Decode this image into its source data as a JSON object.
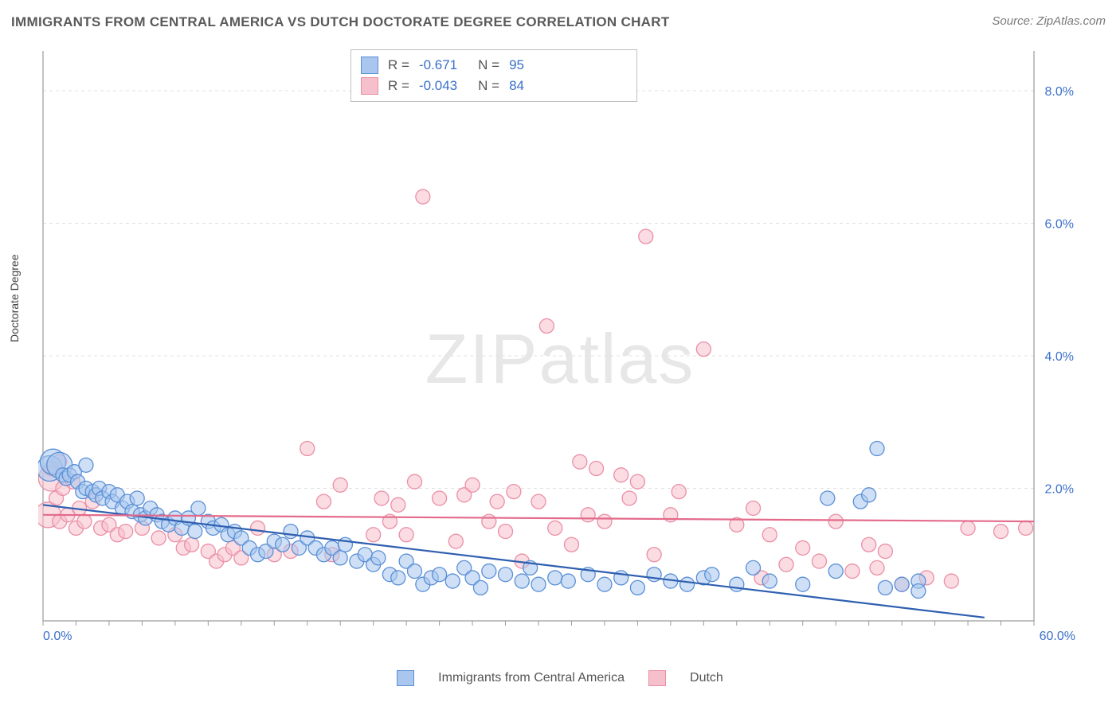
{
  "title": "IMMIGRANTS FROM CENTRAL AMERICA VS DUTCH DOCTORATE DEGREE CORRELATION CHART",
  "source_label": "Source: ",
  "source_value": "ZipAtlas.com",
  "watermark": "ZIPatlas",
  "ylabel": "Doctorate Degree",
  "chart": {
    "type": "scatter",
    "xlim": [
      0,
      60
    ],
    "ylim": [
      0,
      8.6
    ],
    "xtick_labels": [
      "0.0%",
      "60.0%"
    ],
    "ytick_values": [
      2,
      4,
      6,
      8
    ],
    "ytick_labels": [
      "2.0%",
      "4.0%",
      "6.0%",
      "8.0%"
    ],
    "grid_color": "#e0e0e0",
    "axis_color": "#9a9a9a",
    "background": "#ffffff",
    "marker_radius": 9,
    "marker_radius_large": 16,
    "series": [
      {
        "name": "Immigrants from Central America",
        "fill": "#a8c6ee",
        "stroke": "#5a8fd6",
        "fill_opacity": 0.55,
        "line_color": "#2f5fb0",
        "line_width": 2.2,
        "R": "-0.671",
        "N": "95",
        "trend": {
          "x1": 0,
          "y1": 1.75,
          "x2": 57,
          "y2": 0.05
        },
        "points": [
          [
            0.4,
            2.3
          ],
          [
            0.6,
            2.4
          ],
          [
            1.0,
            2.35
          ],
          [
            1.2,
            2.2
          ],
          [
            1.4,
            2.15
          ],
          [
            1.6,
            2.2
          ],
          [
            1.9,
            2.25
          ],
          [
            2.1,
            2.1
          ],
          [
            2.4,
            1.95
          ],
          [
            2.6,
            2.0
          ],
          [
            2.6,
            2.35
          ],
          [
            3.0,
            1.95
          ],
          [
            3.2,
            1.9
          ],
          [
            3.4,
            2.0
          ],
          [
            3.6,
            1.85
          ],
          [
            4.0,
            1.95
          ],
          [
            4.2,
            1.8
          ],
          [
            4.5,
            1.9
          ],
          [
            4.8,
            1.7
          ],
          [
            5.1,
            1.8
          ],
          [
            5.4,
            1.65
          ],
          [
            5.7,
            1.85
          ],
          [
            5.9,
            1.6
          ],
          [
            6.2,
            1.55
          ],
          [
            6.5,
            1.7
          ],
          [
            6.9,
            1.6
          ],
          [
            7.2,
            1.5
          ],
          [
            7.6,
            1.45
          ],
          [
            8.0,
            1.55
          ],
          [
            8.4,
            1.4
          ],
          [
            8.8,
            1.55
          ],
          [
            9.2,
            1.35
          ],
          [
            9.4,
            1.7
          ],
          [
            10.0,
            1.5
          ],
          [
            10.3,
            1.4
          ],
          [
            10.8,
            1.45
          ],
          [
            11.2,
            1.3
          ],
          [
            11.6,
            1.35
          ],
          [
            12.0,
            1.25
          ],
          [
            12.5,
            1.1
          ],
          [
            13.0,
            1.0
          ],
          [
            13.5,
            1.05
          ],
          [
            14.0,
            1.2
          ],
          [
            14.5,
            1.15
          ],
          [
            15.0,
            1.35
          ],
          [
            15.5,
            1.1
          ],
          [
            16.0,
            1.25
          ],
          [
            16.5,
            1.1
          ],
          [
            17.0,
            1.0
          ],
          [
            17.5,
            1.1
          ],
          [
            18.0,
            0.95
          ],
          [
            18.3,
            1.15
          ],
          [
            19.0,
            0.9
          ],
          [
            19.5,
            1.0
          ],
          [
            20.0,
            0.85
          ],
          [
            20.3,
            0.95
          ],
          [
            21.0,
            0.7
          ],
          [
            21.5,
            0.65
          ],
          [
            22.0,
            0.9
          ],
          [
            22.5,
            0.75
          ],
          [
            23.0,
            0.55
          ],
          [
            23.5,
            0.65
          ],
          [
            24.0,
            0.7
          ],
          [
            24.8,
            0.6
          ],
          [
            25.5,
            0.8
          ],
          [
            26.0,
            0.65
          ],
          [
            26.5,
            0.5
          ],
          [
            27.0,
            0.75
          ],
          [
            28.0,
            0.7
          ],
          [
            29.0,
            0.6
          ],
          [
            29.5,
            0.8
          ],
          [
            30.0,
            0.55
          ],
          [
            31.0,
            0.65
          ],
          [
            31.8,
            0.6
          ],
          [
            33.0,
            0.7
          ],
          [
            34.0,
            0.55
          ],
          [
            35.0,
            0.65
          ],
          [
            36.0,
            0.5
          ],
          [
            37.0,
            0.7
          ],
          [
            38.0,
            0.6
          ],
          [
            39.0,
            0.55
          ],
          [
            40.0,
            0.65
          ],
          [
            40.5,
            0.7
          ],
          [
            42.0,
            0.55
          ],
          [
            43.0,
            0.8
          ],
          [
            44.0,
            0.6
          ],
          [
            46.0,
            0.55
          ],
          [
            47.5,
            1.85
          ],
          [
            48.0,
            0.75
          ],
          [
            49.5,
            1.8
          ],
          [
            50.0,
            1.9
          ],
          [
            50.5,
            2.6
          ],
          [
            51.0,
            0.5
          ],
          [
            52.0,
            0.55
          ],
          [
            53.0,
            0.6
          ],
          [
            53.0,
            0.45
          ]
        ]
      },
      {
        "name": "Dutch",
        "fill": "#f5c0cb",
        "stroke": "#eb8fa6",
        "fill_opacity": 0.55,
        "line_color": "#e36a8a",
        "line_width": 2.2,
        "R": "-0.043",
        "N": "84",
        "trend": {
          "x1": 0,
          "y1": 1.6,
          "x2": 60,
          "y2": 1.5
        },
        "points": [
          [
            0.3,
            1.6
          ],
          [
            0.5,
            2.15
          ],
          [
            0.5,
            2.3
          ],
          [
            0.8,
            1.85
          ],
          [
            1.0,
            2.4
          ],
          [
            1.0,
            1.5
          ],
          [
            1.2,
            2.0
          ],
          [
            1.5,
            1.6
          ],
          [
            1.8,
            2.1
          ],
          [
            2.0,
            1.4
          ],
          [
            2.2,
            1.7
          ],
          [
            2.5,
            1.5
          ],
          [
            3.0,
            1.8
          ],
          [
            3.5,
            1.4
          ],
          [
            4.0,
            1.45
          ],
          [
            4.5,
            1.3
          ],
          [
            5.0,
            1.35
          ],
          [
            6.0,
            1.4
          ],
          [
            7.0,
            1.25
          ],
          [
            8.0,
            1.3
          ],
          [
            8.5,
            1.1
          ],
          [
            9.0,
            1.15
          ],
          [
            10.0,
            1.05
          ],
          [
            10.5,
            0.9
          ],
          [
            11.0,
            1.0
          ],
          [
            11.5,
            1.1
          ],
          [
            12.0,
            0.95
          ],
          [
            13.0,
            1.4
          ],
          [
            14.0,
            1.0
          ],
          [
            15.0,
            1.05
          ],
          [
            16.0,
            2.6
          ],
          [
            17.0,
            1.8
          ],
          [
            17.5,
            1.0
          ],
          [
            18.0,
            2.05
          ],
          [
            20.0,
            1.3
          ],
          [
            20.5,
            1.85
          ],
          [
            21.0,
            1.5
          ],
          [
            21.5,
            1.75
          ],
          [
            22.0,
            1.3
          ],
          [
            22.5,
            2.1
          ],
          [
            23.0,
            6.4
          ],
          [
            24.0,
            1.85
          ],
          [
            25.0,
            1.2
          ],
          [
            25.5,
            1.9
          ],
          [
            26.0,
            2.05
          ],
          [
            27.0,
            1.5
          ],
          [
            27.5,
            1.8
          ],
          [
            28.0,
            1.35
          ],
          [
            28.5,
            1.95
          ],
          [
            29.0,
            0.9
          ],
          [
            30.0,
            1.8
          ],
          [
            30.5,
            4.45
          ],
          [
            31.0,
            1.4
          ],
          [
            32.0,
            1.15
          ],
          [
            32.5,
            2.4
          ],
          [
            33.0,
            1.6
          ],
          [
            33.5,
            2.3
          ],
          [
            34.0,
            1.5
          ],
          [
            35.0,
            2.2
          ],
          [
            35.5,
            1.85
          ],
          [
            36.0,
            2.1
          ],
          [
            36.5,
            5.8
          ],
          [
            37.0,
            1.0
          ],
          [
            38.0,
            1.6
          ],
          [
            38.5,
            1.95
          ],
          [
            40.0,
            4.1
          ],
          [
            42.0,
            1.45
          ],
          [
            43.0,
            1.7
          ],
          [
            43.5,
            0.65
          ],
          [
            44.0,
            1.3
          ],
          [
            45.0,
            0.85
          ],
          [
            46.0,
            1.1
          ],
          [
            47.0,
            0.9
          ],
          [
            48.0,
            1.5
          ],
          [
            49.0,
            0.75
          ],
          [
            50.0,
            1.15
          ],
          [
            50.5,
            0.8
          ],
          [
            51.0,
            1.05
          ],
          [
            52.0,
            0.55
          ],
          [
            53.5,
            0.65
          ],
          [
            55.0,
            0.6
          ],
          [
            56.0,
            1.4
          ],
          [
            58.0,
            1.35
          ],
          [
            59.5,
            1.4
          ]
        ]
      }
    ]
  },
  "bottom_legend": [
    {
      "label": "Immigrants from Central America",
      "fill": "#a8c6ee",
      "stroke": "#5a8fd6"
    },
    {
      "label": "Dutch",
      "fill": "#f5c0cb",
      "stroke": "#eb8fa6"
    }
  ]
}
